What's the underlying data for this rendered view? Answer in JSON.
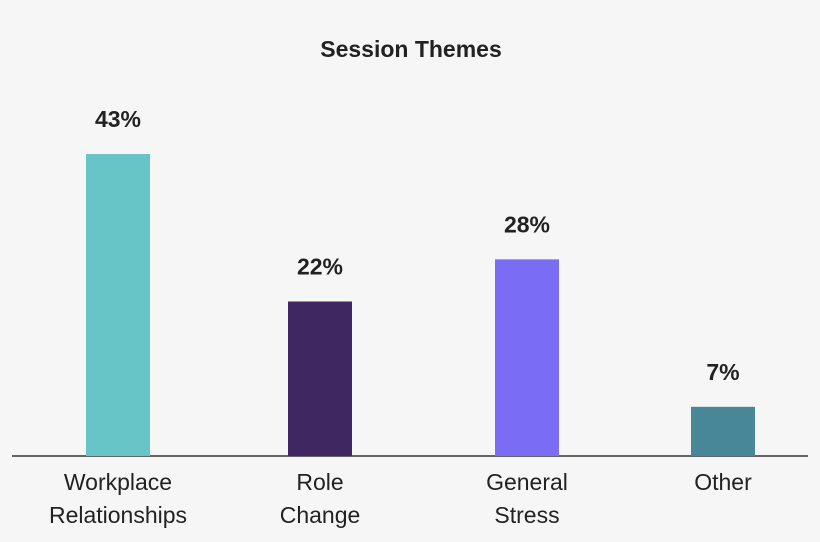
{
  "chart_data": {
    "type": "bar",
    "title": "Session Themes",
    "categories": [
      "Workplace\nRelationships",
      "Role\nChange",
      "General\nStress",
      "Other"
    ],
    "values": [
      43,
      22,
      28,
      7
    ],
    "value_labels": [
      "43%",
      "22%",
      "28%",
      "7%"
    ],
    "colors": [
      "#67c5c7",
      "#3f2862",
      "#7b6cf6",
      "#478797"
    ]
  }
}
